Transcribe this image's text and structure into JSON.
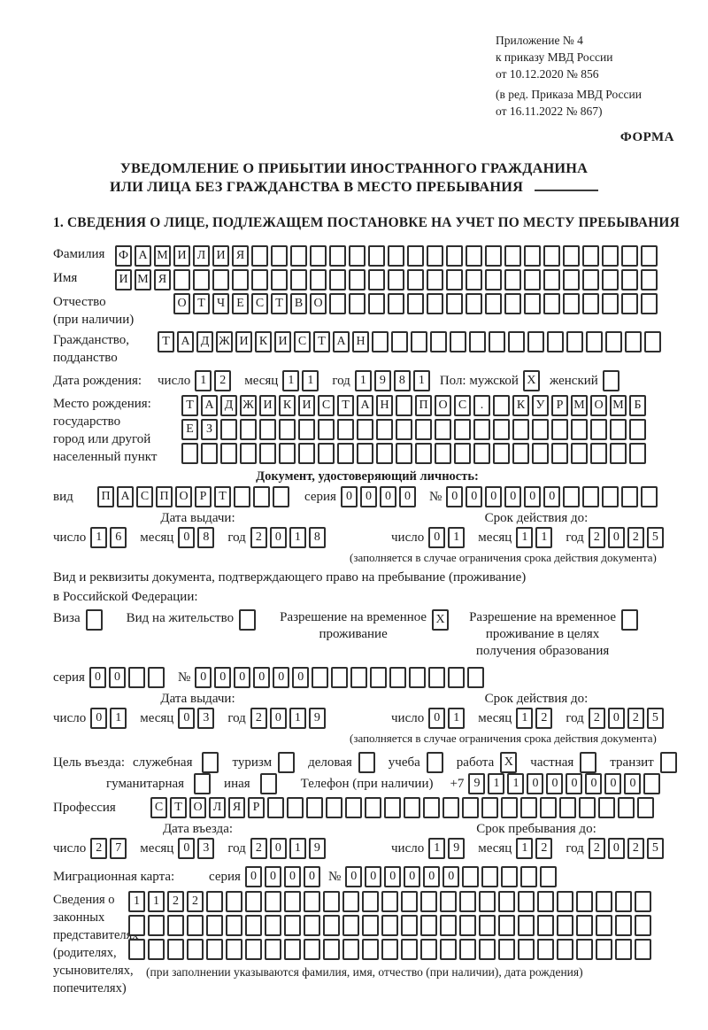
{
  "header": {
    "appendix_lines": [
      "Приложение № 4",
      "к приказу МВД России",
      "от 10.12.2020 № 856"
    ],
    "amendment_lines": [
      "(в ред. Приказа МВД России",
      "от 16.11.2022 № 867)"
    ],
    "form_label": "ФОРМА"
  },
  "title": {
    "line1": "УВЕДОМЛЕНИЕ О ПРИБЫТИИ ИНОСТРАННОГО ГРАЖДАНИНА",
    "line2": "ИЛИ ЛИЦА БЕЗ ГРАЖДАНСТВА В МЕСТО ПРЕБЫВАНИЯ"
  },
  "section1_heading": "1. СВЕДЕНИЯ О ЛИЦЕ, ПОДЛЕЖАЩЕМ ПОСТАНОВКЕ НА УЧЕТ ПО МЕСТУ ПРЕБЫВАНИЯ",
  "surname": {
    "label": "Фамилия",
    "cells": {
      "text": "ФАМИЛИЯ",
      "n": 28
    }
  },
  "firstname": {
    "label": "Имя",
    "cells": {
      "text": "ИМЯ",
      "n": 28
    }
  },
  "patronymic": {
    "label": "Отчество",
    "label2": "(при наличии)",
    "cells": {
      "text": "ОТЧЕСТВО",
      "n": 25
    }
  },
  "citizenship": {
    "label": "Гражданство,",
    "label2": "подданство",
    "cells": {
      "text": "ТАДЖИКИСТАН",
      "n": 26
    }
  },
  "birthdate": {
    "label": "Дата рождения:",
    "day_label": "число",
    "day": {
      "text": "12",
      "n": 2
    },
    "month_label": "месяц",
    "month": {
      "text": "11",
      "n": 2
    },
    "year_label": "год",
    "year": {
      "text": "1981",
      "n": 4
    },
    "sex_label": "Пол: мужской",
    "male_box": {
      "text": "X",
      "n": 1
    },
    "female_label": "женский",
    "female_box": {
      "text": "",
      "n": 1
    }
  },
  "birthplace": {
    "labels": [
      "Место рождения:",
      "государство",
      "город или другой",
      "населенный пункт"
    ],
    "rows": [
      {
        "text": "ТАДЖИКИСТАН ПОС. КУРМОМБ",
        "n": 24
      },
      {
        "text": "ЕЗ",
        "n": 24
      },
      {
        "text": "",
        "n": 24
      }
    ]
  },
  "identity_doc": {
    "heading": "Документ, удостоверяющий личность:",
    "kind_label": "вид",
    "kind": {
      "text": "ПАСПОРТ",
      "n": 10
    },
    "series_label": "серия",
    "series": {
      "text": "0000",
      "n": 4
    },
    "number_label": "№",
    "number": {
      "text": "000000",
      "n": 11
    },
    "issue_label": "Дата выдачи:",
    "issue_day_label": "число",
    "issue_day": {
      "text": "16",
      "n": 2
    },
    "issue_month_label": "месяц",
    "issue_month": {
      "text": "08",
      "n": 2
    },
    "issue_year_label": "год",
    "issue_year": {
      "text": "2018",
      "n": 4
    },
    "expiry_label": "Срок действия до:",
    "expiry_day_label": "число",
    "expiry_day": {
      "text": "01",
      "n": 2
    },
    "expiry_month_label": "месяц",
    "expiry_month": {
      "text": "11",
      "n": 2
    },
    "expiry_year_label": "год",
    "expiry_year": {
      "text": "2025",
      "n": 4
    },
    "note": "(заполняется в случае ограничения срока действия документа)"
  },
  "residence_doc": {
    "line1": "Вид и реквизиты документа, подтверждающего право на пребывание (проживание)",
    "line2": "в Российской Федерации:",
    "visa_label": "Виза",
    "visa_box": {
      "text": "",
      "n": 1
    },
    "permit_label": "Вид на жительство",
    "permit_box": {
      "text": "",
      "n": 1
    },
    "temp_label1": "Разрешение на временное",
    "temp_label2": "проживание",
    "temp_box": {
      "text": "X",
      "n": 1
    },
    "edu_label1": "Разрешение на временное",
    "edu_label2": "проживание в целях",
    "edu_label3": "получения образования",
    "edu_box": {
      "text": "",
      "n": 1
    },
    "series_label": "серия",
    "series": {
      "text": "00",
      "n": 4
    },
    "number_label": "№",
    "number": {
      "text": "000000",
      "n": 15
    },
    "issue_label": "Дата выдачи:",
    "issue_day_label": "число",
    "issue_day": {
      "text": "01",
      "n": 2
    },
    "issue_month_label": "месяц",
    "issue_month": {
      "text": "03",
      "n": 2
    },
    "issue_year_label": "год",
    "issue_year": {
      "text": "2019",
      "n": 4
    },
    "expiry_label": "Срок действия до:",
    "expiry_day_label": "число",
    "expiry_day": {
      "text": "01",
      "n": 2
    },
    "expiry_month_label": "месяц",
    "expiry_month": {
      "text": "12",
      "n": 2
    },
    "expiry_year_label": "год",
    "expiry_year": {
      "text": "2025",
      "n": 4
    },
    "note": "(заполняется в случае ограничения срока действия документа)"
  },
  "purpose": {
    "label": "Цель въезда:",
    "options": [
      {
        "label": "служебная",
        "box": {
          "text": "",
          "n": 1
        }
      },
      {
        "label": "туризм",
        "box": {
          "text": "",
          "n": 1
        }
      },
      {
        "label": "деловая",
        "box": {
          "text": "",
          "n": 1
        }
      },
      {
        "label": "учеба",
        "box": {
          "text": "",
          "n": 1
        }
      },
      {
        "label": "работа",
        "box": {
          "text": "X",
          "n": 1
        }
      },
      {
        "label": "частная",
        "box": {
          "text": "",
          "n": 1
        }
      },
      {
        "label": "транзит",
        "box": {
          "text": "",
          "n": 1
        }
      }
    ],
    "options2": [
      {
        "label": "гуманитарная",
        "box": {
          "text": "",
          "n": 1
        }
      },
      {
        "label": "иная",
        "box": {
          "text": "",
          "n": 1
        }
      }
    ],
    "phone_label": "Телефон (при наличии)",
    "phone_prefix": "+7",
    "phone": {
      "text": "911000000",
      "n": 10
    }
  },
  "profession": {
    "label": "Профессия",
    "cells": {
      "text": "СТОЛЯР",
      "n": 26
    }
  },
  "entry": {
    "entry_label": "Дата въезда:",
    "entry_day_label": "число",
    "entry_day": {
      "text": "27",
      "n": 2
    },
    "entry_month_label": "месяц",
    "entry_month": {
      "text": "03",
      "n": 2
    },
    "entry_year_label": "год",
    "entry_year": {
      "text": "2019",
      "n": 4
    },
    "stay_label": "Срок пребывания до:",
    "stay_day_label": "число",
    "stay_day": {
      "text": "19",
      "n": 2
    },
    "stay_month_label": "месяц",
    "stay_month": {
      "text": "12",
      "n": 2
    },
    "stay_year_label": "год",
    "stay_year": {
      "text": "2025",
      "n": 4
    }
  },
  "migration_card": {
    "label": "Миграционная карта:",
    "series_label": "серия",
    "series": {
      "text": "0000",
      "n": 4
    },
    "number_label": "№",
    "number": {
      "text": "000000",
      "n": 11
    }
  },
  "representatives": {
    "labels": [
      "Сведения о",
      "законных",
      "представителях",
      "(родителях,",
      "усыновителях,",
      "попечителях)"
    ],
    "rows": [
      {
        "text": "1122",
        "n": 27
      },
      {
        "text": "",
        "n": 27
      },
      {
        "text": "",
        "n": 27
      }
    ],
    "note": "(при заполнении указываются фамилия, имя, отчество (при наличии), дата рождения)"
  }
}
